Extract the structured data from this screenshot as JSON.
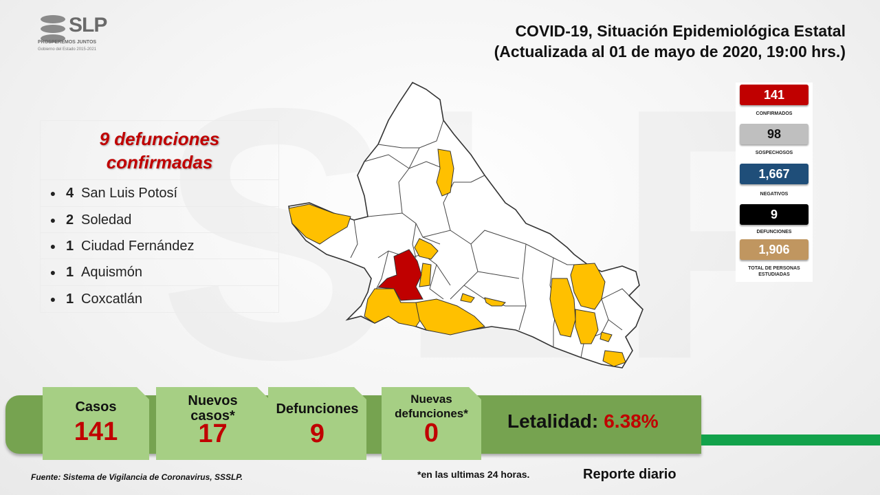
{
  "logo": {
    "text": "SLP",
    "tagline": "PROSPEREMOS JUNTOS",
    "subtitle": "Gobierno del Estado 2015-2021"
  },
  "title": {
    "line1": "COVID-19, Situación Epidemiológica Estatal",
    "line2": "(Actualizada al 01 de mayo de 2020, 19:00 hrs.)"
  },
  "deaths": {
    "heading_line1": "9 defunciones",
    "heading_line2": "confirmadas",
    "items": [
      {
        "count": "4",
        "municipality": "San Luis Potosí"
      },
      {
        "count": "2",
        "municipality": "Soledad"
      },
      {
        "count": "1",
        "municipality": "Ciudad Fernández"
      },
      {
        "count": "1",
        "municipality": "Aquismón"
      },
      {
        "count": "1",
        "municipality": "Coxcatlán"
      }
    ]
  },
  "stats": [
    {
      "value": "141",
      "label": "CONFIRMADOS",
      "color": "#c00000",
      "text_color": "#ffffff"
    },
    {
      "value": "98",
      "label": "SOSPECHOSOS",
      "color": "#bfbfbf",
      "text_color": "#111111"
    },
    {
      "value": "1,667",
      "label": "NEGATIVOS",
      "color": "#1f4e79",
      "text_color": "#ffffff"
    },
    {
      "value": "9",
      "label": "DEFUNCIONES",
      "color": "#000000",
      "text_color": "#ffffff"
    },
    {
      "value": "1,906",
      "label": "TOTAL DE PERSONAS ESTUDIADAS",
      "color": "#c09660",
      "text_color": "#ffffff"
    }
  ],
  "summary": {
    "casos_label": "Casos",
    "casos_value": "141",
    "nuevos_casos_label_1": "Nuevos",
    "nuevos_casos_label_2": "casos*",
    "nuevos_casos_value": "17",
    "defunciones_label": "Defunciones",
    "defunciones_value": "9",
    "nuevas_defunciones_label_1": "Nuevas",
    "nuevas_defunciones_label_2": "defunciones*",
    "nuevas_defunciones_value": "0",
    "letalidad_label": "Letalidad:",
    "letalidad_value": "6.38%"
  },
  "footer": {
    "source": "Fuente: Sistema de Vigilancia de Coronavirus, SSSLP.",
    "footnote": "*en las ultimas 24 horas.",
    "report": "Reporte diario"
  },
  "colors": {
    "map_death": "#c00000",
    "map_case": "#ffc000",
    "map_none": "#ffffff",
    "band": "#76a350",
    "tile": "#a6cf84"
  }
}
